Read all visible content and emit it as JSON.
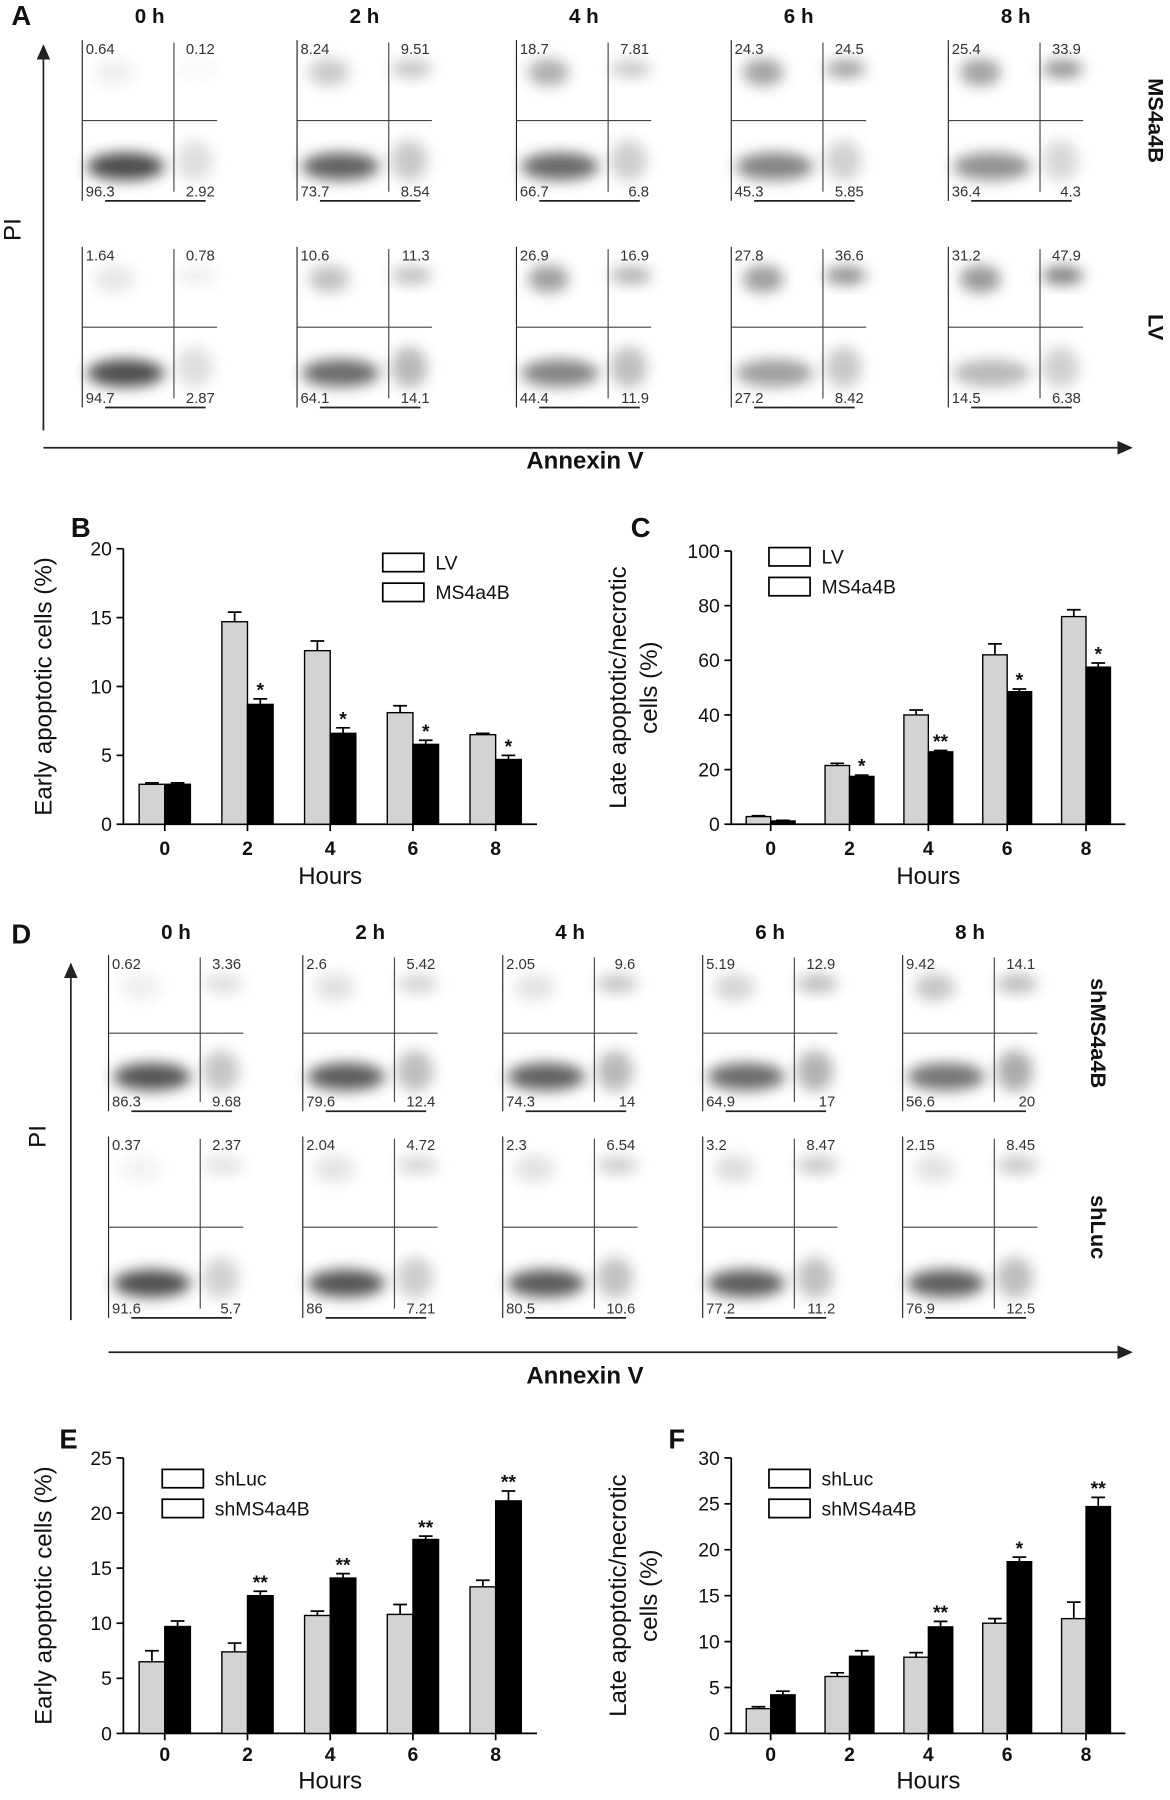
{
  "flow_panels": [
    {
      "label": "A",
      "time_points": [
        "0 h",
        "2 h",
        "4 h",
        "6 h",
        "8 h"
      ],
      "y_label": "PI",
      "x_label": "Annexin V",
      "rows": [
        {
          "name": "MS4a4B",
          "quadrants": [
            [
              0.64,
              0.12,
              96.3,
              2.92
            ],
            [
              8.24,
              9.51,
              73.7,
              8.54
            ],
            [
              18.7,
              7.81,
              66.7,
              6.8
            ],
            [
              24.3,
              24.5,
              45.3,
              5.85
            ],
            [
              25.4,
              33.9,
              36.4,
              4.3
            ]
          ]
        },
        {
          "name": "LV",
          "quadrants": [
            [
              1.64,
              0.78,
              94.7,
              2.87
            ],
            [
              10.6,
              11.3,
              64.1,
              14.1
            ],
            [
              26.9,
              16.9,
              44.4,
              11.9
            ],
            [
              27.8,
              36.6,
              27.2,
              8.42
            ],
            [
              31.2,
              47.9,
              14.5,
              6.38
            ]
          ]
        }
      ]
    },
    {
      "label": "D",
      "time_points": [
        "0 h",
        "2 h",
        "4 h",
        "6 h",
        "8 h"
      ],
      "y_label": "PI",
      "x_label": "Annexin V",
      "rows": [
        {
          "name": "shMS4a4B",
          "quadrants": [
            [
              0.62,
              3.36,
              86.3,
              9.68
            ],
            [
              2.6,
              5.42,
              79.6,
              12.4
            ],
            [
              2.05,
              9.6,
              74.3,
              14
            ],
            [
              5.19,
              12.9,
              64.9,
              17
            ],
            [
              9.42,
              14.1,
              56.6,
              20
            ]
          ]
        },
        {
          "name": "shLuc",
          "quadrants": [
            [
              0.37,
              2.37,
              91.6,
              5.7
            ],
            [
              2.04,
              4.72,
              86,
              7.21
            ],
            [
              2.3,
              6.54,
              80.5,
              10.6
            ],
            [
              3.2,
              8.47,
              77.2,
              11.2
            ],
            [
              2.15,
              8.45,
              76.9,
              12.5
            ]
          ]
        }
      ]
    }
  ],
  "chart_data": [
    {
      "type": "bar",
      "panel_label": "B",
      "y_label": [
        "Early apoptotic cells (%)"
      ],
      "x_label": "Hours",
      "categories": [
        "0",
        "2",
        "4",
        "6",
        "8"
      ],
      "ylim": [
        0,
        20
      ],
      "yticks": [
        0,
        5,
        10,
        15,
        20
      ],
      "series": [
        {
          "name": "LV",
          "color": "#d3d3d3",
          "values": [
            2.9,
            14.7,
            12.6,
            8.1,
            6.5
          ],
          "errors": [
            0.1,
            0.7,
            0.7,
            0.5,
            0.1
          ]
        },
        {
          "name": "MS4a4B",
          "color": "#000000",
          "values": [
            2.9,
            8.7,
            6.6,
            5.8,
            4.7
          ],
          "errors": [
            0.1,
            0.4,
            0.4,
            0.3,
            0.3
          ],
          "significance": [
            null,
            "*",
            "*",
            "*",
            "*"
          ]
        }
      ]
    },
    {
      "type": "bar",
      "panel_label": "C",
      "y_label": [
        "Late apoptotic/necrotic",
        "cells (%)"
      ],
      "x_label": "Hours",
      "categories": [
        "0",
        "2",
        "4",
        "6",
        "8"
      ],
      "ylim": [
        0,
        100
      ],
      "yticks": [
        0,
        20,
        40,
        60,
        80,
        100
      ],
      "series": [
        {
          "name": "LV",
          "color": "#d3d3d3",
          "values": [
            2.8,
            21.5,
            40,
            62,
            76
          ],
          "errors": [
            0.3,
            0.8,
            1.8,
            4,
            2.5
          ]
        },
        {
          "name": "MS4a4B",
          "color": "#000000",
          "values": [
            1.2,
            17.5,
            26.5,
            48.5,
            57.5
          ],
          "errors": [
            0.2,
            0.5,
            0.5,
            1,
            1.5
          ],
          "significance": [
            null,
            "*",
            "**",
            "*",
            "*"
          ]
        }
      ]
    },
    {
      "type": "bar",
      "panel_label": "E",
      "y_label": [
        "Early apoptotic cells (%)"
      ],
      "x_label": "Hours",
      "categories": [
        "0",
        "2",
        "4",
        "6",
        "8"
      ],
      "ylim": [
        0,
        25
      ],
      "yticks": [
        0,
        5,
        10,
        15,
        20,
        25
      ],
      "series": [
        {
          "name": "shLuc",
          "color": "#d3d3d3",
          "values": [
            6.5,
            7.4,
            10.7,
            10.8,
            13.3
          ],
          "errors": [
            1,
            0.8,
            0.4,
            0.9,
            0.6
          ]
        },
        {
          "name": "shMS4a4B",
          "color": "#000000",
          "values": [
            9.7,
            12.5,
            14.1,
            17.6,
            21.1
          ],
          "errors": [
            0.5,
            0.4,
            0.4,
            0.3,
            0.9
          ],
          "significance": [
            null,
            "**",
            "**",
            "**",
            "**"
          ]
        }
      ]
    },
    {
      "type": "bar",
      "panel_label": "F",
      "y_label": [
        "Late apoptotic/necrotic",
        "cells (%)"
      ],
      "x_label": "Hours",
      "categories": [
        "0",
        "2",
        "4",
        "6",
        "8"
      ],
      "ylim": [
        0,
        30
      ],
      "yticks": [
        0,
        5,
        10,
        15,
        20,
        25,
        30
      ],
      "series": [
        {
          "name": "shLuc",
          "color": "#d3d3d3",
          "values": [
            2.7,
            6.2,
            8.3,
            12,
            12.5
          ],
          "errors": [
            0.2,
            0.4,
            0.5,
            0.5,
            1.8
          ]
        },
        {
          "name": "shMS4a4B",
          "color": "#000000",
          "values": [
            4.2,
            8.4,
            11.6,
            18.7,
            24.7
          ],
          "errors": [
            0.4,
            0.6,
            0.6,
            0.5,
            1
          ],
          "significance": [
            null,
            null,
            "**",
            "*",
            "**"
          ]
        }
      ]
    }
  ]
}
